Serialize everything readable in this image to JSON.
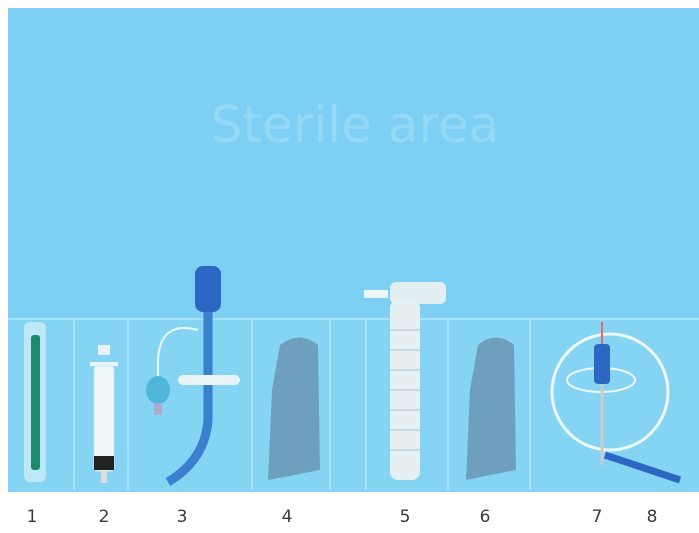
{
  "title": "Sterile area",
  "labels": [
    "1",
    "2",
    "3",
    "4",
    "5",
    "6",
    "7",
    "8"
  ]
}
